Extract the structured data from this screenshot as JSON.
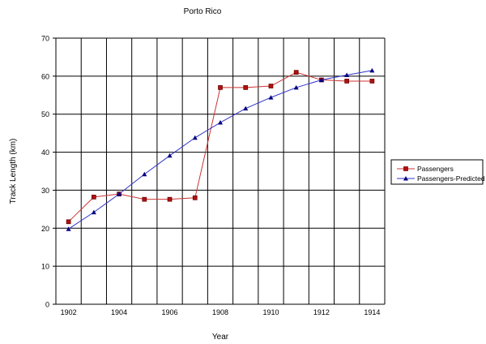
{
  "chart_data": {
    "type": "line",
    "title": "Porto Rico",
    "xlabel": "Year",
    "ylabel": "Track Length (km)",
    "categories": [
      1902,
      1903,
      1904,
      1905,
      1906,
      1907,
      1908,
      1909,
      1910,
      1911,
      1912,
      1913,
      1914
    ],
    "x_tick_labels": [
      "1902",
      "1904",
      "1906",
      "1908",
      "1910",
      "1912",
      "1914"
    ],
    "y_tick_labels": [
      "0",
      "10",
      "20",
      "30",
      "40",
      "50",
      "60",
      "70"
    ],
    "ylim": [
      0,
      70
    ],
    "grid": true,
    "legend_position": "right",
    "series": [
      {
        "name": "Passengers",
        "color": "#cc3333",
        "marker": "square",
        "values": [
          21.7,
          28.2,
          29.0,
          27.6,
          27.6,
          28.0,
          57.0,
          57.0,
          57.4,
          61.0,
          59.0,
          58.7,
          58.7
        ]
      },
      {
        "name": "Passengers-Predicted",
        "color": "#3333cc",
        "marker": "triangle",
        "values": [
          19.8,
          24.2,
          29.0,
          34.2,
          39.1,
          43.8,
          47.8,
          51.5,
          54.4,
          57.0,
          59.0,
          60.3,
          61.5
        ]
      }
    ]
  }
}
